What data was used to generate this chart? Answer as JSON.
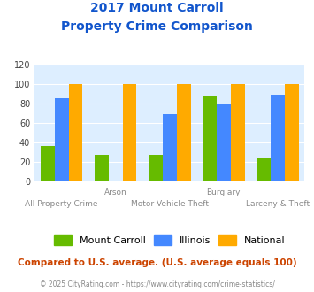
{
  "title_line1": "2017 Mount Carroll",
  "title_line2": "Property Crime Comparison",
  "categories": [
    "All Property Crime",
    "Arson",
    "Motor Vehicle Theft",
    "Burglary",
    "Larceny & Theft"
  ],
  "x_labels_top": [
    "",
    "Arson",
    "",
    "Burglary",
    ""
  ],
  "x_labels_bottom": [
    "All Property Crime",
    "",
    "Motor Vehicle Theft",
    "",
    "Larceny & Theft"
  ],
  "mount_carroll": [
    36,
    27,
    27,
    88,
    23
  ],
  "illinois": [
    85,
    0,
    69,
    79,
    89
  ],
  "national": [
    100,
    100,
    100,
    100,
    100
  ],
  "bar_colors": {
    "mount_carroll": "#66bb00",
    "illinois": "#4488ff",
    "national": "#ffaa00"
  },
  "ylim": [
    0,
    120
  ],
  "yticks": [
    0,
    20,
    40,
    60,
    80,
    100,
    120
  ],
  "plot_bg": "#ddeeff",
  "title_color": "#1155cc",
  "xlabel_color": "#888888",
  "legend_labels": [
    "Mount Carroll",
    "Illinois",
    "National"
  ],
  "footer_text": "Compared to U.S. average. (U.S. average equals 100)",
  "copyright_text": "© 2025 CityRating.com - https://www.cityrating.com/crime-statistics/",
  "footer_color": "#cc4400",
  "copyright_color": "#888888"
}
